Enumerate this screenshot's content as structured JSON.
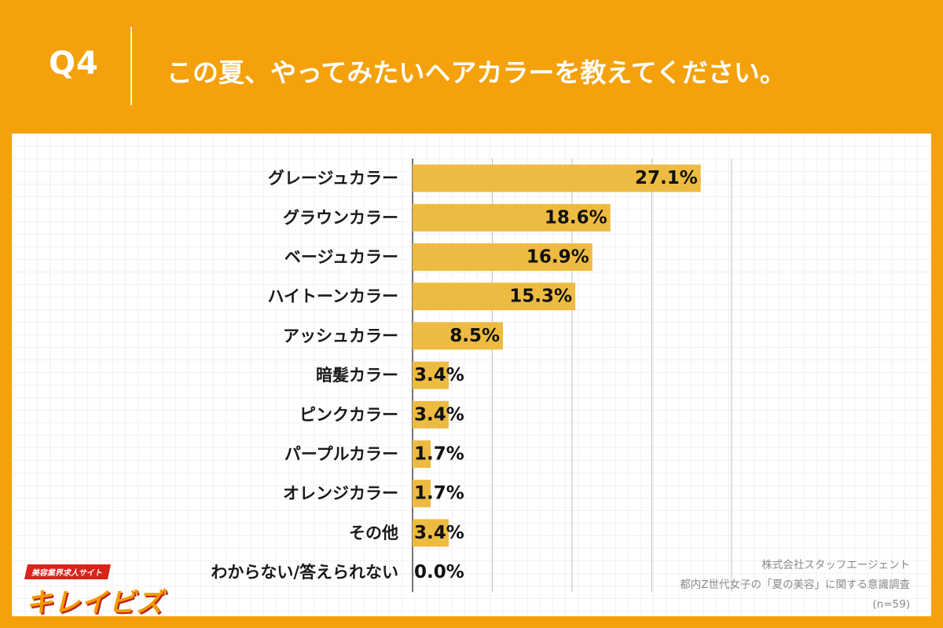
{
  "header": {
    "question_number": "Q4",
    "question_text": "この夏、やってみたいヘアカラーを教えてください。"
  },
  "chart_data": {
    "type": "bar",
    "orientation": "horizontal",
    "categories": [
      "グレージュカラー",
      "グラウンカラー",
      "ベージュカラー",
      "ハイトーンカラー",
      "アッシュカラー",
      "暗髪カラー",
      "ピンクカラー",
      "パープルカラー",
      "オレンジカラー",
      "その他",
      "わからない/答えられない"
    ],
    "values": [
      27.1,
      18.6,
      16.9,
      15.3,
      8.5,
      3.4,
      3.4,
      1.7,
      1.7,
      3.4,
      0.0
    ],
    "value_labels": [
      "27.1%",
      "18.6%",
      "16.9%",
      "15.3%",
      "8.5%",
      "3.4%",
      "3.4%",
      "1.7%",
      "1.7%",
      "3.4%",
      "0.0%"
    ],
    "xlim": [
      0,
      30
    ],
    "gridlines": [
      7.5,
      15,
      22.5,
      30
    ],
    "grid": true,
    "bar_color": "#EDBB41"
  },
  "logo": {
    "tagline": "美容業界求人サイト",
    "name": "キレイビズ"
  },
  "source": {
    "company": "株式会社スタッフエージェント",
    "survey": "都内Z世代女子の「夏の美容」に関する意識調査",
    "sample": "(n=59)"
  },
  "colors": {
    "background": "#F4A10B",
    "bar": "#EDBB41",
    "logo_red": "#D9231B",
    "logo_orange": "#F29A00"
  }
}
